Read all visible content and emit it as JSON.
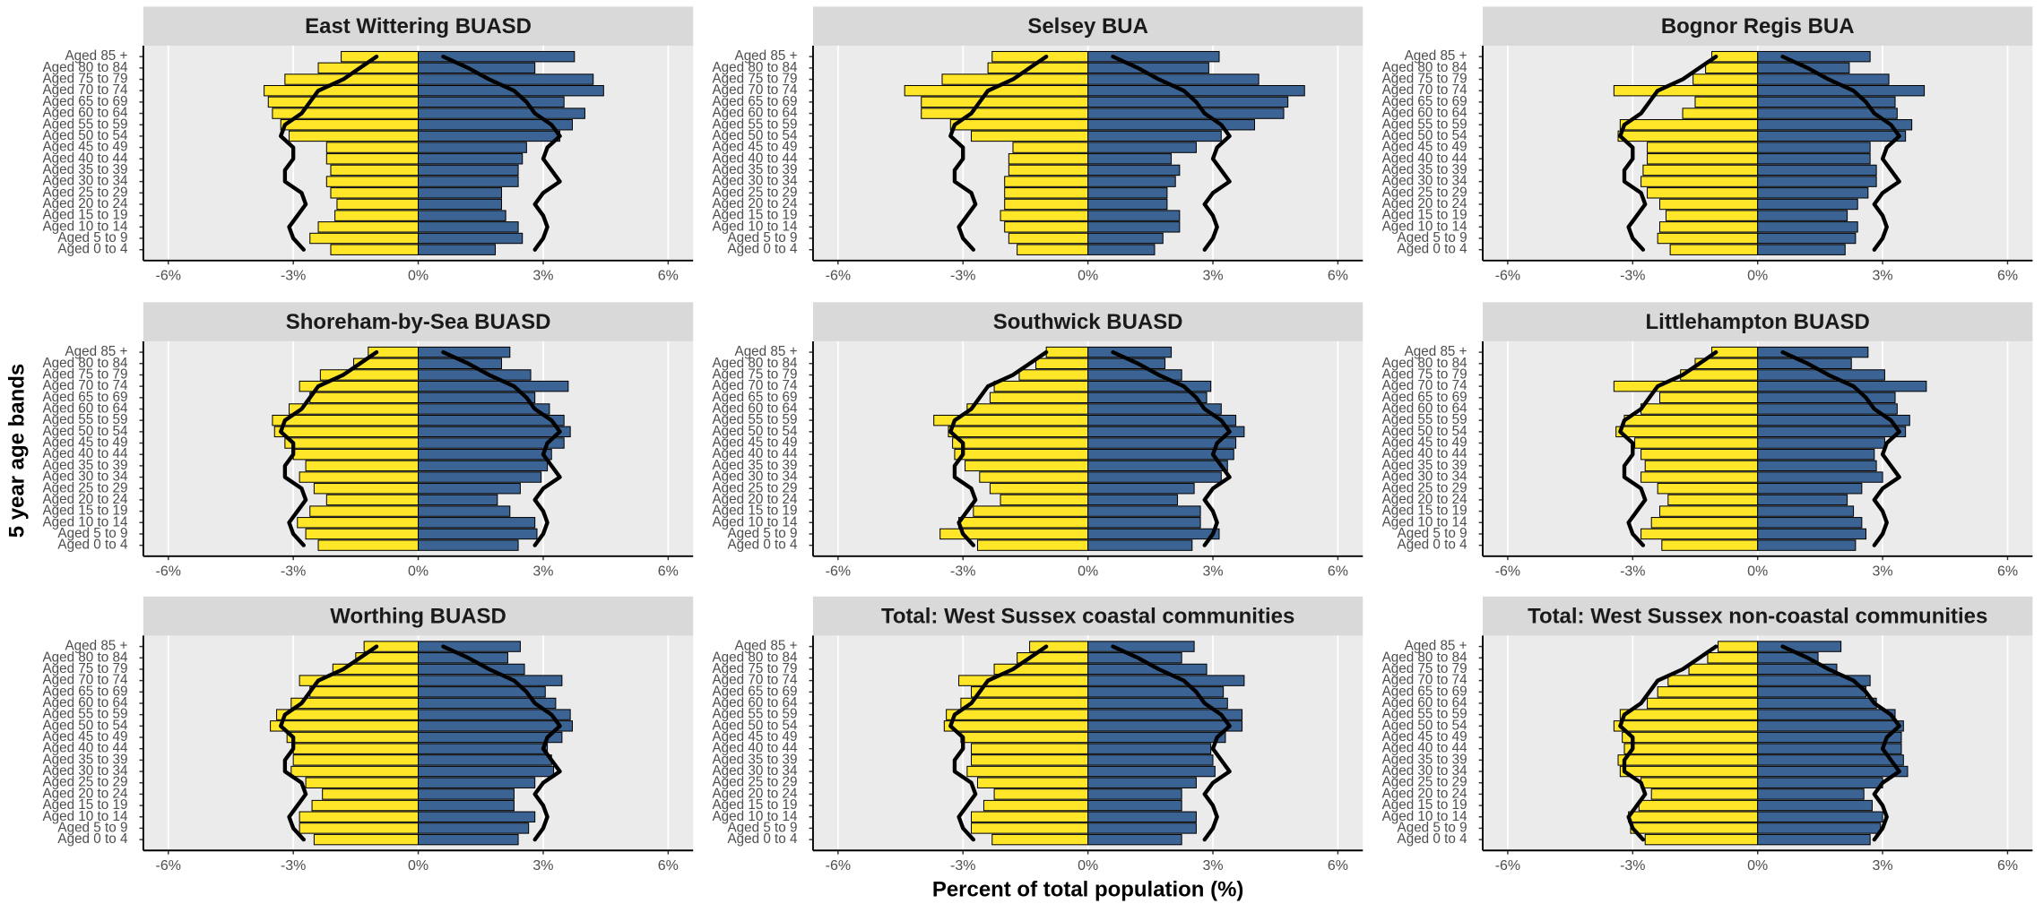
{
  "chart_data": {
    "type": "pyramid",
    "ylabel": "5 year age bands",
    "xlabel": "Percent of total population (%)",
    "categories": [
      "Aged 0 to 4",
      "Aged 5 to 9",
      "Aged 10 to 14",
      "Aged 15 to 19",
      "Aged 20 to 24",
      "Aged 25 to 29",
      "Aged 30 to 34",
      "Aged 35 to 39",
      "Aged 40 to 44",
      "Aged 45 to 49",
      "Aged 50 to 54",
      "Aged 55 to 59",
      "Aged 60 to 64",
      "Aged 65 to 69",
      "Aged 70 to 74",
      "Aged 75 to 79",
      "Aged 80 to 84",
      "Aged 85 +"
    ],
    "xlim": [
      -6.6,
      6.6
    ],
    "xticks": [
      {
        "value": -6,
        "label": "-6%"
      },
      {
        "value": -3,
        "label": "-3%"
      },
      {
        "value": 0,
        "label": "0%"
      },
      {
        "value": 3,
        "label": "3%"
      },
      {
        "value": 6,
        "label": "6%"
      }
    ],
    "grid": true,
    "reference": [
      {
        "color": "#000000",
        "values": [
          -2.75,
          -3.0,
          -3.1,
          -2.9,
          -2.7,
          -2.8,
          -3.2,
          -3.2,
          -3.0,
          -3.0,
          -3.3,
          -3.2,
          -2.8,
          -2.6,
          -2.4,
          -1.8,
          -1.4,
          -1.0
        ]
      },
      {
        "color": "#000000",
        "values": [
          2.8,
          3.0,
          3.1,
          3.0,
          2.8,
          3.0,
          3.4,
          3.2,
          3.0,
          3.1,
          3.4,
          3.2,
          2.8,
          2.6,
          2.3,
          1.7,
          1.2,
          0.6
        ]
      }
    ],
    "panels": [
      {
        "title": "East Wittering BUASD",
        "series": [
          {
            "color": "#ffe629",
            "values": [
              -2.1,
              -2.6,
              -2.4,
              -2.0,
              -1.95,
              -2.1,
              -2.2,
              -2.1,
              -2.2,
              -2.2,
              -3.1,
              -3.3,
              -3.5,
              -3.6,
              -3.7,
              -3.2,
              -2.4,
              -1.85
            ]
          },
          {
            "color": "#3b6394",
            "values": [
              1.85,
              2.5,
              2.4,
              2.1,
              2.0,
              2.0,
              2.4,
              2.4,
              2.5,
              2.6,
              3.4,
              3.7,
              4.0,
              3.5,
              4.45,
              4.2,
              2.8,
              3.75
            ]
          }
        ]
      },
      {
        "title": "Selsey BUA",
        "series": [
          {
            "color": "#ffe629",
            "values": [
              -1.7,
              -1.9,
              -2.0,
              -2.1,
              -2.0,
              -2.0,
              -2.0,
              -1.9,
              -1.9,
              -1.8,
              -2.8,
              -3.3,
              -4.0,
              -4.0,
              -4.4,
              -3.5,
              -2.4,
              -2.3
            ]
          },
          {
            "color": "#3b6394",
            "values": [
              1.6,
              1.8,
              2.2,
              2.2,
              1.9,
              1.9,
              2.1,
              2.2,
              2.0,
              2.6,
              3.2,
              4.0,
              4.7,
              4.8,
              5.2,
              4.1,
              2.9,
              3.15
            ]
          }
        ]
      },
      {
        "title": "Bognor Regis BUA",
        "series": [
          {
            "color": "#ffe629",
            "values": [
              -2.1,
              -2.4,
              -2.35,
              -2.2,
              -2.35,
              -2.65,
              -2.8,
              -2.75,
              -2.65,
              -2.65,
              -3.35,
              -3.3,
              -1.8,
              -1.5,
              -3.45,
              -1.55,
              -1.25,
              -1.1
            ]
          },
          {
            "color": "#3b6394",
            "values": [
              2.1,
              2.35,
              2.4,
              2.15,
              2.4,
              2.65,
              2.85,
              2.85,
              2.7,
              2.7,
              3.55,
              3.7,
              3.35,
              3.3,
              4.0,
              3.15,
              2.2,
              2.7
            ]
          }
        ]
      },
      {
        "title": "Shoreham-by-Sea BUASD",
        "series": [
          {
            "color": "#ffe629",
            "values": [
              -2.4,
              -2.7,
              -2.9,
              -2.6,
              -2.2,
              -2.5,
              -2.85,
              -2.7,
              -3.0,
              -3.2,
              -3.45,
              -3.5,
              -3.1,
              -2.6,
              -2.85,
              -2.35,
              -1.55,
              -1.2
            ]
          },
          {
            "color": "#3b6394",
            "values": [
              2.4,
              2.85,
              2.8,
              2.2,
              1.9,
              2.45,
              2.95,
              3.1,
              3.2,
              3.5,
              3.65,
              3.5,
              3.15,
              2.8,
              3.6,
              2.7,
              2.0,
              2.2
            ]
          }
        ]
      },
      {
        "title": "Southwick BUASD",
        "series": [
          {
            "color": "#ffe629",
            "values": [
              -2.65,
              -3.55,
              -3.1,
              -2.75,
              -2.1,
              -2.35,
              -2.6,
              -2.95,
              -3.2,
              -3.25,
              -3.35,
              -3.7,
              -2.9,
              -2.35,
              -2.25,
              -1.65,
              -1.25,
              -1.0
            ]
          },
          {
            "color": "#3b6394",
            "values": [
              2.5,
              3.15,
              2.7,
              2.7,
              2.15,
              2.55,
              3.2,
              3.35,
              3.5,
              3.55,
              3.75,
              3.55,
              3.2,
              2.85,
              2.95,
              2.25,
              1.85,
              2.0
            ]
          }
        ]
      },
      {
        "title": "Littlehampton BUASD",
        "series": [
          {
            "color": "#ffe629",
            "values": [
              -2.3,
              -2.8,
              -2.55,
              -2.35,
              -2.15,
              -2.4,
              -2.8,
              -2.7,
              -2.8,
              -2.95,
              -3.4,
              -3.2,
              -2.8,
              -2.35,
              -3.45,
              -1.85,
              -1.5,
              -1.1
            ]
          },
          {
            "color": "#3b6394",
            "values": [
              2.35,
              2.6,
              2.5,
              2.3,
              2.15,
              2.5,
              3.0,
              2.85,
              2.8,
              3.05,
              3.55,
              3.65,
              3.35,
              3.3,
              4.05,
              3.05,
              2.25,
              2.65
            ]
          }
        ]
      },
      {
        "title": "Worthing BUASD",
        "series": [
          {
            "color": "#ffe629",
            "values": [
              -2.5,
              -2.85,
              -2.85,
              -2.55,
              -2.3,
              -2.7,
              -3.05,
              -3.0,
              -3.0,
              -3.15,
              -3.55,
              -3.4,
              -3.05,
              -2.6,
              -2.85,
              -2.05,
              -1.5,
              -1.3
            ]
          },
          {
            "color": "#3b6394",
            "values": [
              2.4,
              2.65,
              2.8,
              2.3,
              2.3,
              2.8,
              3.25,
              3.2,
              3.1,
              3.45,
              3.7,
              3.65,
              3.3,
              3.05,
              3.45,
              2.55,
              2.15,
              2.45
            ]
          }
        ]
      },
      {
        "title": "Total: West Sussex coastal communities",
        "series": [
          {
            "color": "#ffe629",
            "values": [
              -2.3,
              -2.8,
              -2.8,
              -2.5,
              -2.25,
              -2.65,
              -2.9,
              -2.8,
              -2.8,
              -3.05,
              -3.45,
              -3.4,
              -3.05,
              -2.8,
              -3.1,
              -2.25,
              -1.7,
              -1.4
            ]
          },
          {
            "color": "#3b6394",
            "values": [
              2.25,
              2.6,
              2.6,
              2.25,
              2.25,
              2.6,
              3.05,
              3.0,
              2.95,
              3.3,
              3.7,
              3.7,
              3.35,
              3.25,
              3.75,
              2.85,
              2.25,
              2.55
            ]
          }
        ]
      },
      {
        "title": "Total: West Sussex non-coastal communities",
        "series": [
          {
            "color": "#ffe629",
            "values": [
              -2.7,
              -3.05,
              -3.1,
              -2.85,
              -2.55,
              -2.8,
              -3.3,
              -3.35,
              -3.2,
              -3.25,
              -3.45,
              -3.3,
              -2.65,
              -2.4,
              -2.15,
              -1.65,
              -1.2,
              -0.95
            ]
          },
          {
            "color": "#3b6394",
            "values": [
              2.7,
              2.95,
              3.0,
              2.75,
              2.55,
              3.0,
              3.6,
              3.5,
              3.45,
              3.45,
              3.5,
              3.3,
              2.85,
              2.6,
              2.7,
              1.9,
              1.45,
              2.0
            ]
          }
        ]
      }
    ]
  }
}
